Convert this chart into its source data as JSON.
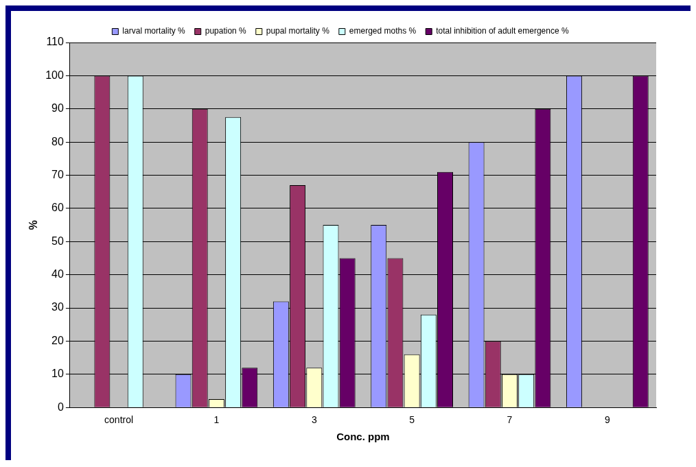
{
  "chart_data": {
    "type": "bar",
    "xlabel": "Conc. ppm",
    "ylabel": "%",
    "categories": [
      "control",
      "1",
      "3",
      "5",
      "7",
      "9"
    ],
    "series": [
      {
        "name": "larval mortality %",
        "color": "#9999ff",
        "values": [
          0,
          10,
          32,
          55,
          80,
          100
        ]
      },
      {
        "name": "pupation %",
        "color": "#993366",
        "values": [
          100,
          90,
          67,
          45,
          20,
          0
        ]
      },
      {
        "name": "pupal mortality %",
        "color": "#ffffcc",
        "values": [
          0,
          2.5,
          12,
          16,
          10,
          0
        ]
      },
      {
        "name": "emerged moths %",
        "color": "#ccffff",
        "values": [
          100,
          87.5,
          55,
          28,
          10,
          0
        ]
      },
      {
        "name": "total inhibition of adult emergence %",
        "color": "#660066",
        "values": [
          0,
          12,
          45,
          71,
          90,
          100
        ]
      }
    ],
    "ylim": [
      0,
      110
    ],
    "yticks": [
      0,
      10,
      20,
      30,
      40,
      50,
      60,
      70,
      80,
      90,
      100,
      110
    ],
    "grid": "y",
    "legend": "top"
  }
}
